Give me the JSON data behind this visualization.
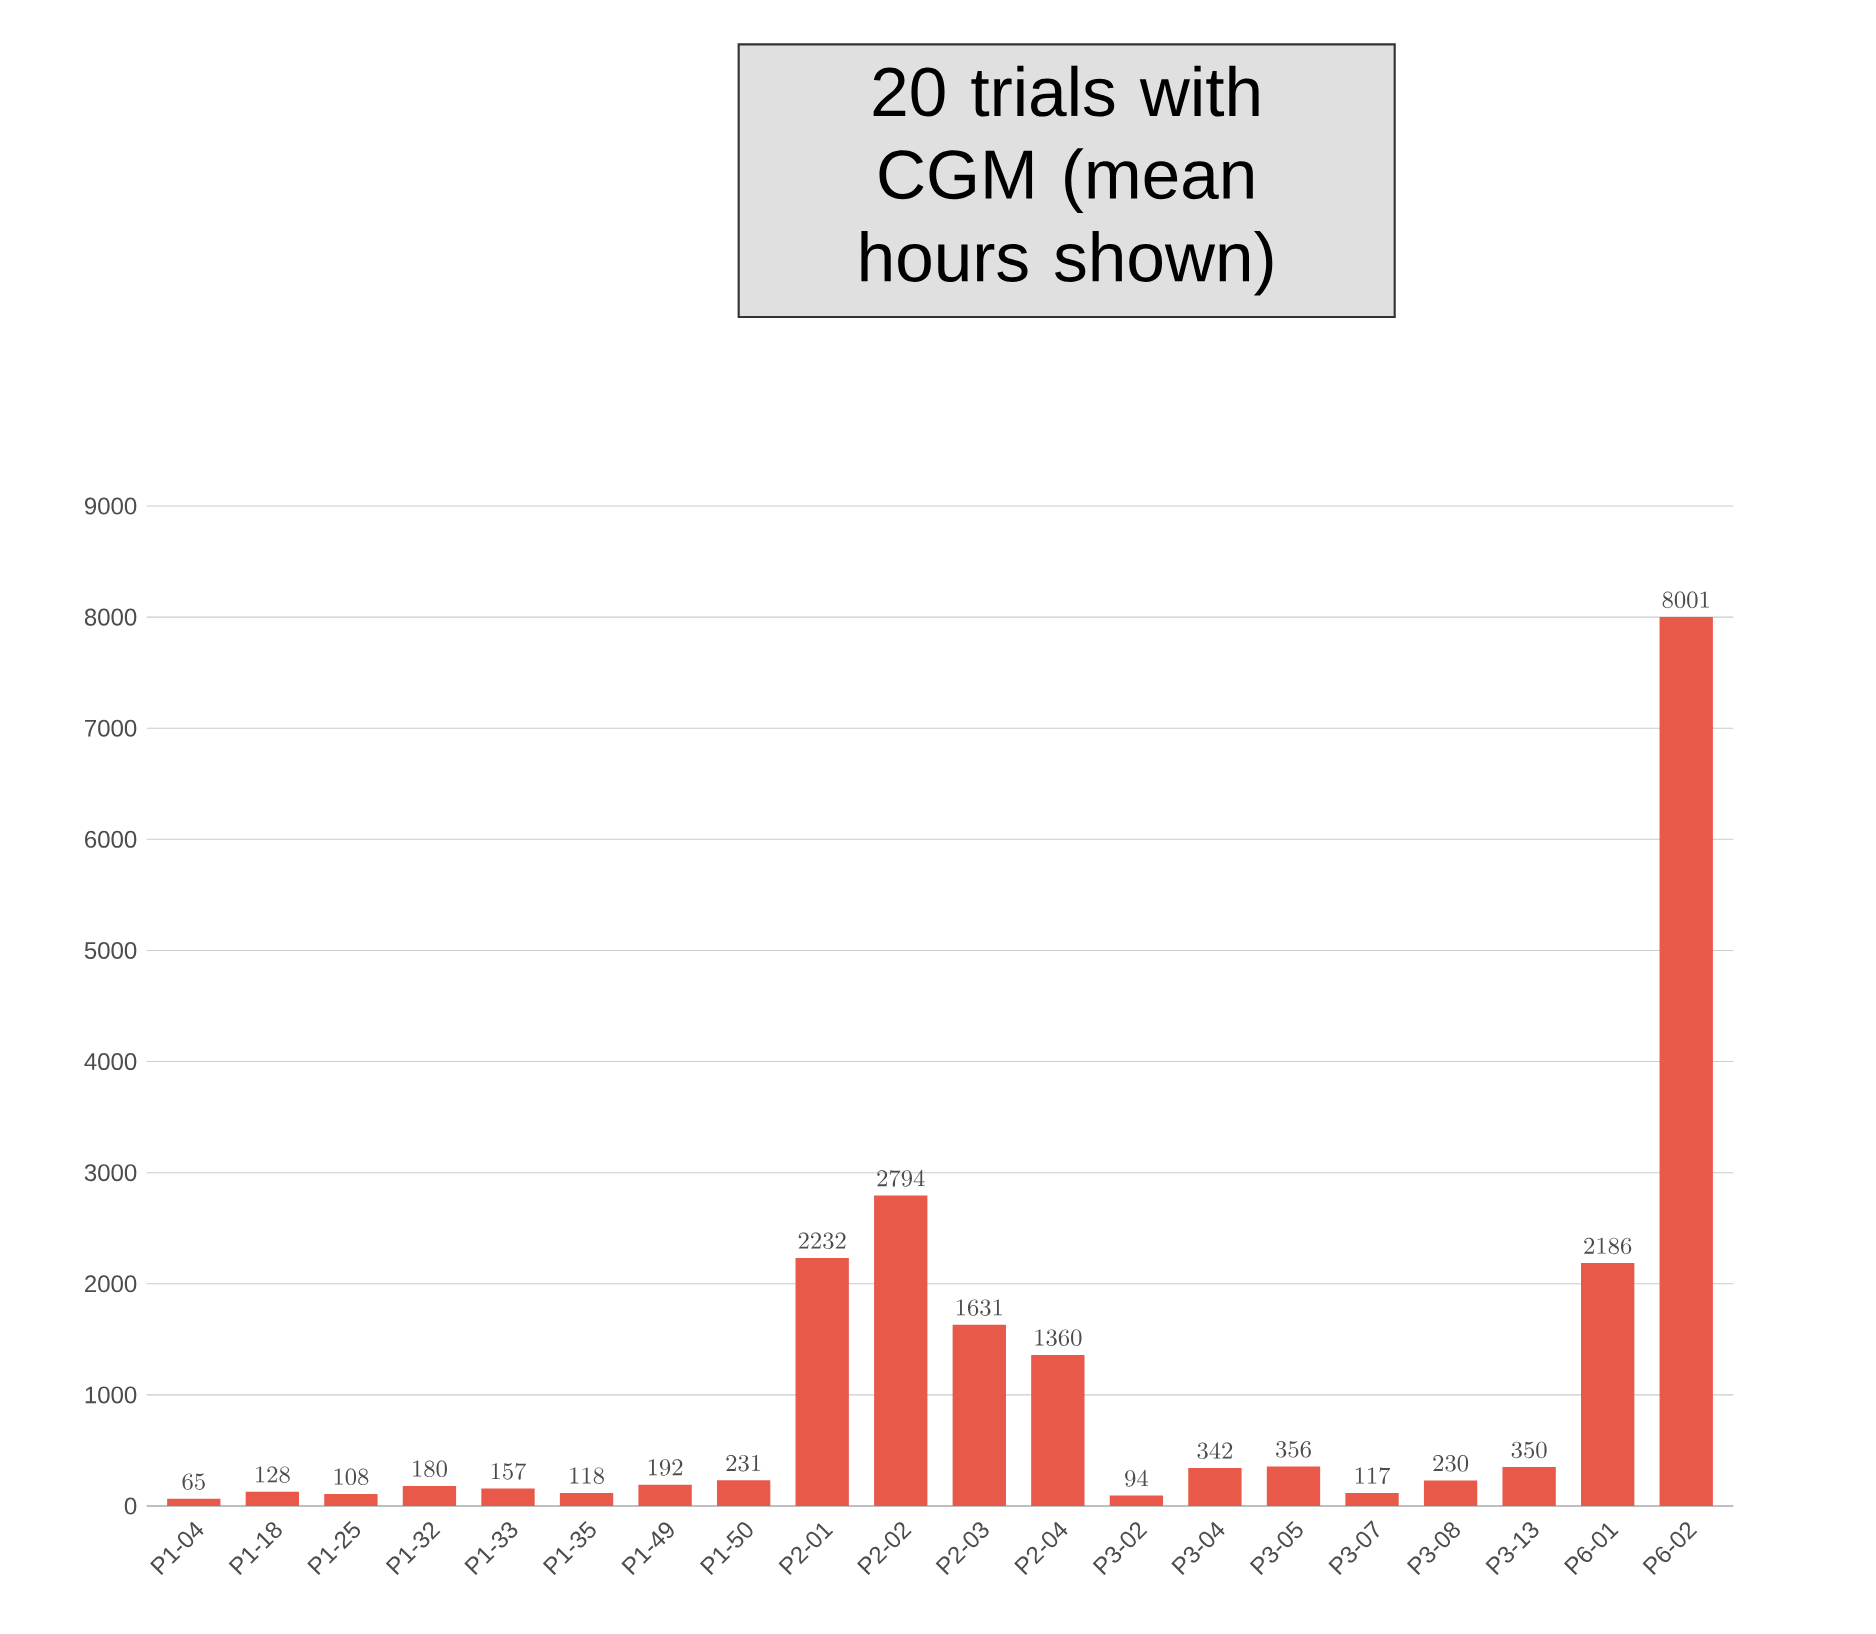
{
  "chart_data": {
    "type": "bar",
    "title": "20 trials with CGM (mean hours shown)",
    "categories": [
      "P1-04",
      "P1-18",
      "P1-25",
      "P1-32",
      "P1-33",
      "P1-35",
      "P1-49",
      "P1-50",
      "P2-01",
      "P2-02",
      "P2-03",
      "P2-04",
      "P3-02",
      "P3-04",
      "P3-05",
      "P3-07",
      "P3-08",
      "P3-13",
      "P6-01",
      "P6-02"
    ],
    "values": [
      65,
      128,
      108,
      180,
      157,
      118,
      192,
      231,
      2232,
      2794,
      1631,
      1360,
      94,
      342,
      356,
      117,
      230,
      350,
      2186,
      8001
    ],
    "color": "#e8594a",
    "ylim": [
      0,
      9000
    ],
    "yticks": [
      0,
      1000,
      2000,
      3000,
      4000,
      5000,
      6000,
      7000,
      8000,
      9000
    ],
    "grid": "y",
    "data_labels": true
  }
}
